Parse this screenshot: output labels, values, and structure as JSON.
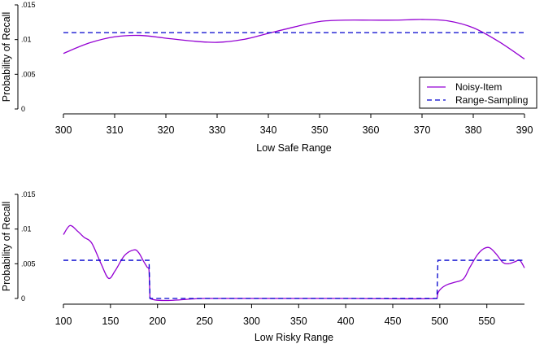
{
  "colors": {
    "noisy": "#9400D3",
    "range": "#0000CD",
    "axis": "#000000"
  },
  "chart_data": [
    {
      "type": "line",
      "xlabel": "Low Safe Range",
      "ylabel": "Probability of Recall",
      "xlim": [
        300,
        390
      ],
      "ylim": [
        0,
        0.015
      ],
      "xticks": [
        300,
        310,
        320,
        330,
        340,
        350,
        360,
        370,
        380,
        390
      ],
      "xtick_labels": [
        "300",
        "310",
        "320",
        "330",
        "340",
        "350",
        "360",
        "370",
        "380",
        "390"
      ],
      "yticks": [
        0,
        0.005,
        0.01,
        0.015
      ],
      "ytick_labels": [
        "0",
        ".005",
        ".01",
        ".015"
      ],
      "grid": false,
      "legend": {
        "placement": "bottom-right",
        "entries": [
          "Noisy-Item",
          "Range-Sampling"
        ]
      },
      "series": [
        {
          "name": "Noisy-Item",
          "style": "solid",
          "x": [
            300,
            305,
            310,
            315,
            320,
            325,
            330,
            335,
            340,
            345,
            350,
            355,
            360,
            365,
            370,
            375,
            380,
            385,
            390
          ],
          "y": [
            0.008,
            0.0095,
            0.0104,
            0.0106,
            0.0102,
            0.0098,
            0.0096,
            0.01,
            0.0109,
            0.0118,
            0.0126,
            0.0128,
            0.0128,
            0.0128,
            0.0129,
            0.0127,
            0.0117,
            0.0097,
            0.0072
          ]
        },
        {
          "name": "Range-Sampling",
          "style": "dashed",
          "x": [
            300,
            390
          ],
          "y": [
            0.011,
            0.011
          ]
        }
      ]
    },
    {
      "type": "line",
      "xlabel": "Low Risky Range",
      "ylabel": "Probability of Recall",
      "xlim": [
        100,
        590
      ],
      "ylim": [
        0,
        0.015
      ],
      "xticks": [
        100,
        150,
        200,
        250,
        300,
        350,
        400,
        450,
        500,
        550
      ],
      "xtick_labels": [
        "100",
        "150",
        "200",
        "250",
        "300",
        "350",
        "400",
        "450",
        "500",
        "550"
      ],
      "yticks": [
        0,
        0.005,
        0.01,
        0.015
      ],
      "ytick_labels": [
        "0",
        ".005",
        ".01",
        ".015"
      ],
      "grid": false,
      "series": [
        {
          "name": "Noisy-Item",
          "style": "solid",
          "x": [
            100,
            107,
            115,
            122,
            130,
            140,
            148,
            155,
            165,
            175,
            180,
            185,
            189,
            191,
            192,
            250,
            300,
            400,
            497,
            498,
            502,
            508,
            515,
            525,
            532,
            540,
            547,
            553,
            560,
            567,
            573,
            580,
            585,
            590
          ],
          "y": [
            0.0092,
            0.0105,
            0.0097,
            0.0088,
            0.008,
            0.005,
            0.0029,
            0.004,
            0.0062,
            0.007,
            0.0066,
            0.0054,
            0.0045,
            0.004,
            0.0,
            0.0,
            0.0,
            0.0,
            0.0,
            0.0008,
            0.0015,
            0.002,
            0.0023,
            0.0028,
            0.0045,
            0.0063,
            0.0072,
            0.0073,
            0.0064,
            0.0052,
            0.005,
            0.0053,
            0.0055,
            0.0044
          ]
        },
        {
          "name": "Range-Sampling",
          "style": "dashed",
          "x": [
            100,
            191,
            192,
            497,
            498,
            590
          ],
          "y": [
            0.0055,
            0.0055,
            0.0,
            0.0,
            0.0055,
            0.0055
          ]
        }
      ]
    }
  ]
}
